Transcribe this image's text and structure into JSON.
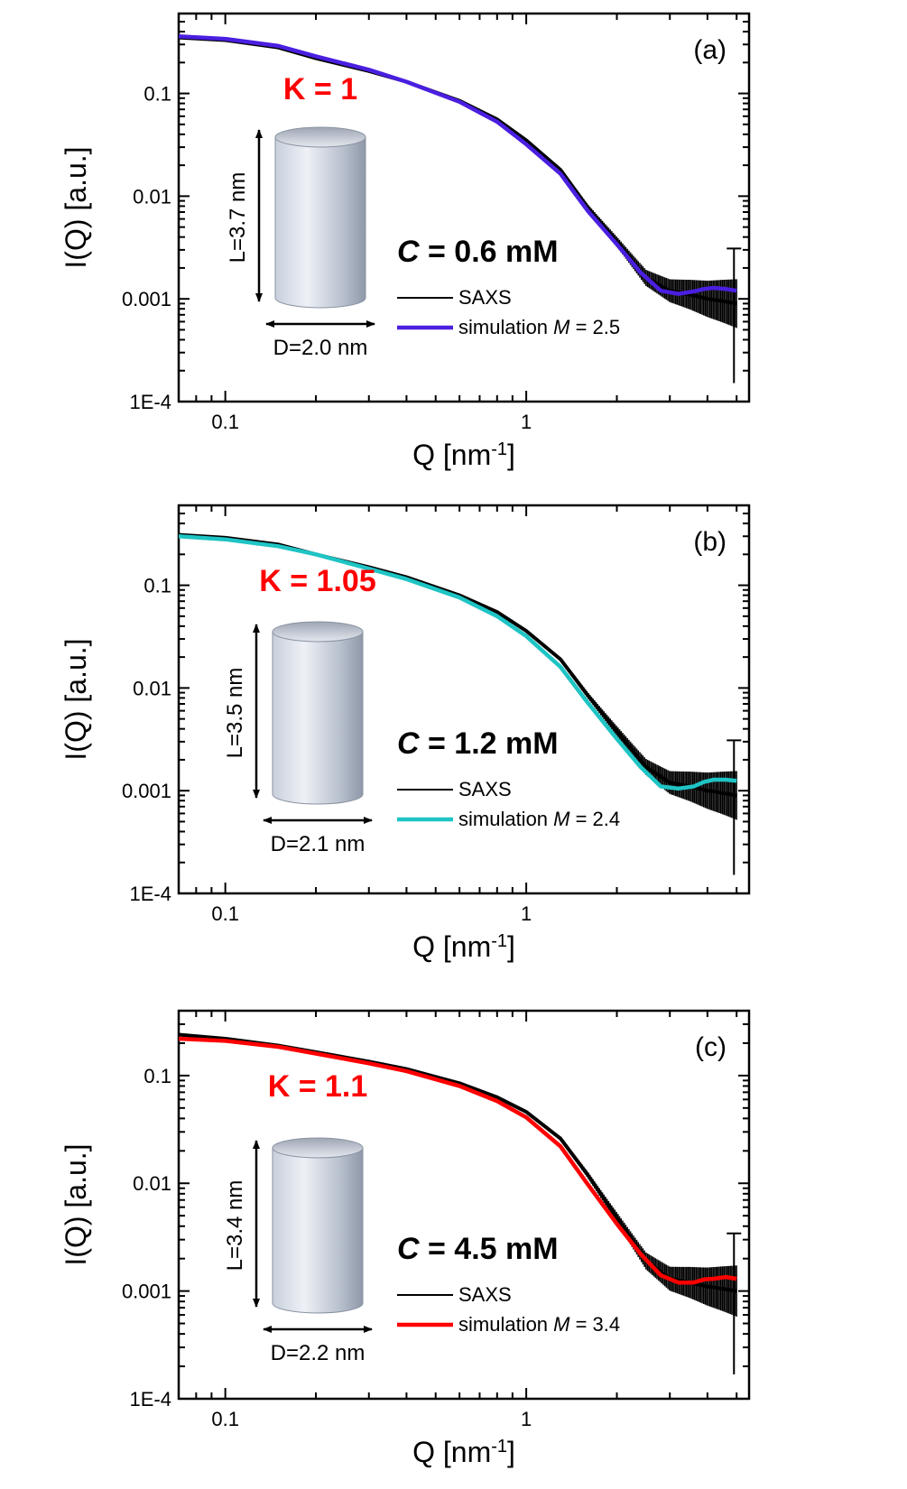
{
  "figure": {
    "description": "SAXS intensity I(Q) vs Q for three concentrations, with simulations of cylindrical micelles",
    "axis_common": {
      "xlabel_main": "Q [nm",
      "xlabel_sup": "-1",
      "xlabel_end": "]",
      "ylabel": "I(Q) [a.u.]"
    }
  },
  "chart_data": [
    {
      "type": "line",
      "panel": "(a)",
      "x_scale": "log",
      "y_scale": "log",
      "xlim": [
        0.07,
        5.5
      ],
      "ylim": [
        0.0001,
        0.6
      ],
      "xticks": [
        {
          "v": 0.1,
          "label": "0.1"
        },
        {
          "v": 1,
          "label": "1"
        }
      ],
      "yticks": [
        {
          "v": 0.1,
          "label": "0.1"
        },
        {
          "v": 0.01,
          "label": "0.01"
        },
        {
          "v": 0.001,
          "label": "0.001"
        },
        {
          "v": 0.0001,
          "label": "1E-4"
        }
      ],
      "xlabel": "Q [nm-1]",
      "ylabel": "I(Q) [a.u.]",
      "k_label": "K = 1",
      "conc_label": "C = 0.6 mM",
      "cylinder": {
        "length_label": "L=3.7 nm",
        "diameter_label": "D=2.0 nm"
      },
      "series": [
        {
          "name": "SAXS",
          "color": "#000000",
          "x": [
            0.07,
            0.1,
            0.15,
            0.2,
            0.3,
            0.4,
            0.6,
            0.8,
            1.0,
            1.3,
            1.6,
            2.0,
            2.5,
            3.0,
            3.5,
            4.0,
            4.5,
            5.0
          ],
          "values": [
            0.35,
            0.33,
            0.28,
            0.22,
            0.165,
            0.13,
            0.085,
            0.056,
            0.035,
            0.018,
            0.0078,
            0.0036,
            0.0016,
            0.0012,
            0.0011,
            0.001,
            0.00095,
            0.0009
          ]
        },
        {
          "name": "simulation M = 2.5",
          "color": "#4a1fe0",
          "x": [
            0.07,
            0.1,
            0.15,
            0.2,
            0.3,
            0.4,
            0.6,
            0.8,
            1.0,
            1.3,
            1.6,
            2.0,
            2.4,
            2.8,
            3.2,
            3.6,
            3.9,
            4.2,
            4.6,
            5.0
          ],
          "values": [
            0.36,
            0.34,
            0.29,
            0.23,
            0.17,
            0.13,
            0.083,
            0.053,
            0.032,
            0.0165,
            0.0072,
            0.0034,
            0.0018,
            0.0012,
            0.00112,
            0.00118,
            0.00125,
            0.00128,
            0.00125,
            0.0012
          ]
        }
      ],
      "legend": {
        "saxs": "SAXS",
        "sim_prefix": "simulation ",
        "sim_var": "M",
        "sim_value": " = 2.5"
      }
    },
    {
      "type": "line",
      "panel": "(b)",
      "x_scale": "log",
      "y_scale": "log",
      "xlim": [
        0.07,
        5.5
      ],
      "ylim": [
        0.0001,
        0.6
      ],
      "xticks": [
        {
          "v": 0.1,
          "label": "0.1"
        },
        {
          "v": 1,
          "label": "1"
        }
      ],
      "yticks": [
        {
          "v": 0.1,
          "label": "0.1"
        },
        {
          "v": 0.01,
          "label": "0.01"
        },
        {
          "v": 0.001,
          "label": "0.001"
        },
        {
          "v": 0.0001,
          "label": "1E-4"
        }
      ],
      "xlabel": "Q [nm-1]",
      "ylabel": "I(Q) [a.u.]",
      "k_label": "K = 1.05",
      "conc_label": "C = 1.2 mM",
      "cylinder": {
        "length_label": "L=3.5 nm",
        "diameter_label": "D=2.1 nm"
      },
      "series": [
        {
          "name": "SAXS",
          "color": "#000000",
          "x": [
            0.07,
            0.1,
            0.15,
            0.2,
            0.3,
            0.4,
            0.6,
            0.8,
            1.0,
            1.3,
            1.6,
            2.0,
            2.5,
            3.0,
            3.5,
            4.0,
            4.5,
            5.0
          ],
          "values": [
            0.31,
            0.29,
            0.25,
            0.2,
            0.15,
            0.12,
            0.08,
            0.055,
            0.036,
            0.019,
            0.0085,
            0.0038,
            0.0017,
            0.0012,
            0.0011,
            0.001,
            0.00095,
            0.0009
          ]
        },
        {
          "name": "simulation M = 2.4",
          "color": "#1fc4c4",
          "x": [
            0.07,
            0.1,
            0.15,
            0.2,
            0.3,
            0.4,
            0.6,
            0.8,
            1.0,
            1.3,
            1.6,
            2.0,
            2.4,
            2.8,
            3.2,
            3.6,
            3.9,
            4.2,
            4.6,
            5.0
          ],
          "values": [
            0.3,
            0.28,
            0.24,
            0.2,
            0.145,
            0.115,
            0.076,
            0.05,
            0.032,
            0.016,
            0.0072,
            0.0032,
            0.0017,
            0.0011,
            0.00105,
            0.0011,
            0.00122,
            0.00128,
            0.00128,
            0.00125
          ]
        }
      ],
      "legend": {
        "saxs": "SAXS",
        "sim_prefix": "simulation ",
        "sim_var": "M",
        "sim_value": " = 2.4"
      }
    },
    {
      "type": "line",
      "panel": "(c)",
      "x_scale": "log",
      "y_scale": "log",
      "xlim": [
        0.07,
        5.5
      ],
      "ylim": [
        0.0001,
        0.4
      ],
      "xticks": [
        {
          "v": 0.1,
          "label": "0.1"
        },
        {
          "v": 1,
          "label": "1"
        }
      ],
      "yticks": [
        {
          "v": 0.1,
          "label": "0.1"
        },
        {
          "v": 0.01,
          "label": "0.01"
        },
        {
          "v": 0.001,
          "label": "0.001"
        },
        {
          "v": 0.0001,
          "label": "1E-4"
        }
      ],
      "xlabel": "Q [nm-1]",
      "ylabel": "I(Q) [a.u.]",
      "k_label": "K = 1.1",
      "conc_label": "C = 4.5 mM",
      "cylinder": {
        "length_label": "L=3.4 nm",
        "diameter_label": "D=2.2 nm"
      },
      "series": [
        {
          "name": "SAXS",
          "color": "#000000",
          "x": [
            0.07,
            0.1,
            0.15,
            0.2,
            0.3,
            0.4,
            0.6,
            0.8,
            1.0,
            1.3,
            1.6,
            2.0,
            2.5,
            3.0,
            3.5,
            4.0,
            4.5,
            5.0
          ],
          "values": [
            0.24,
            0.22,
            0.19,
            0.165,
            0.135,
            0.115,
            0.085,
            0.063,
            0.046,
            0.026,
            0.012,
            0.0048,
            0.0019,
            0.0013,
            0.0012,
            0.0011,
            0.00105,
            0.001
          ]
        },
        {
          "name": "simulation M = 3.4",
          "color": "#ff0000",
          "x": [
            0.07,
            0.1,
            0.15,
            0.2,
            0.3,
            0.4,
            0.6,
            0.8,
            1.0,
            1.3,
            1.6,
            2.0,
            2.4,
            2.8,
            3.2,
            3.6,
            3.9,
            4.2,
            4.6,
            5.0
          ],
          "values": [
            0.22,
            0.21,
            0.185,
            0.16,
            0.13,
            0.11,
            0.08,
            0.058,
            0.041,
            0.022,
            0.0098,
            0.0042,
            0.0022,
            0.0014,
            0.0012,
            0.0012,
            0.00128,
            0.0013,
            0.00135,
            0.0013
          ]
        }
      ],
      "legend": {
        "saxs": "SAXS",
        "sim_prefix": "simulation ",
        "sim_var": "M",
        "sim_value": " = 3.4"
      }
    }
  ]
}
